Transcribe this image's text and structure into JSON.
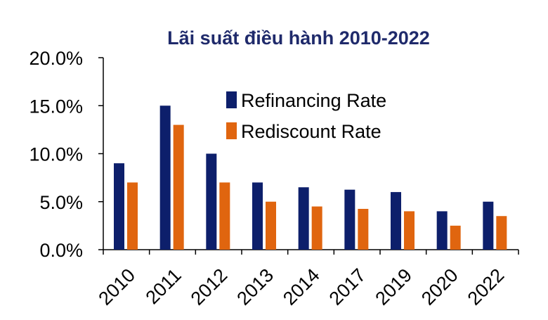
{
  "chart_data": {
    "type": "bar",
    "title": "Lãi suất điều hành 2010-2022",
    "xlabel": "",
    "ylabel": "",
    "categories": [
      "2010",
      "2011",
      "2012",
      "2013",
      "2014",
      "2017",
      "2019",
      "2020",
      "2022"
    ],
    "series": [
      {
        "name": "Refinancing Rate",
        "color": "#0d1f6b",
        "values": [
          9.0,
          15.0,
          10.0,
          7.0,
          6.5,
          6.25,
          6.0,
          4.0,
          5.0
        ]
      },
      {
        "name": "Rediscount Rate",
        "color": "#e0650f",
        "values": [
          7.0,
          13.0,
          7.0,
          5.0,
          4.5,
          4.25,
          4.0,
          2.5,
          3.5
        ]
      }
    ],
    "ylim": [
      0,
      20
    ],
    "yticks": [
      "0.0%",
      "5.0%",
      "10.0%",
      "15.0%",
      "20.0%"
    ],
    "grid": false,
    "legend_position": "top-right"
  }
}
